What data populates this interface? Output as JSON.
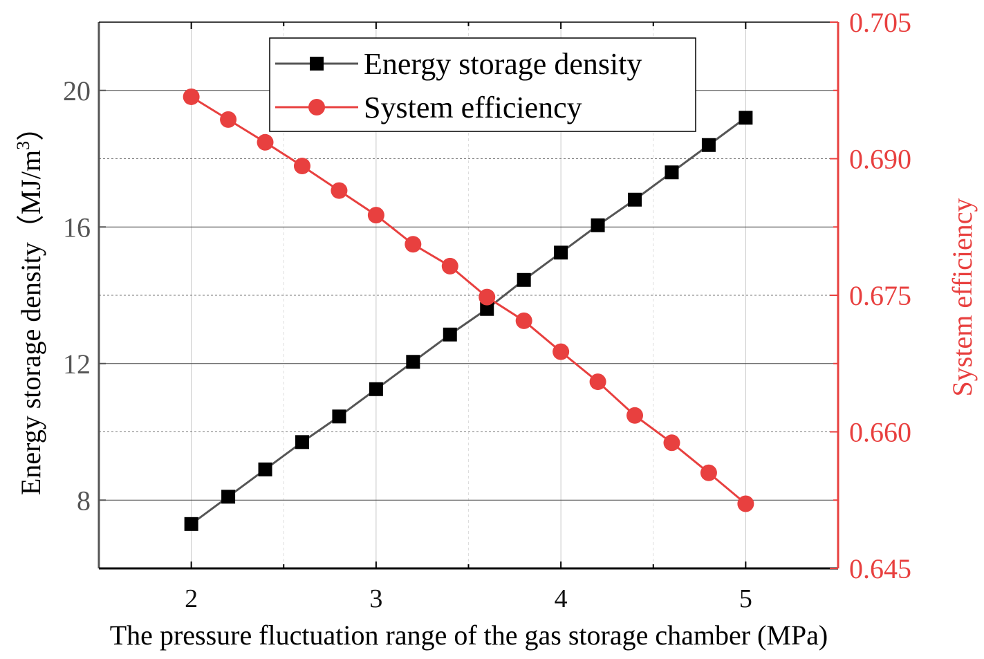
{
  "chart_data": {
    "type": "line",
    "x": [
      2.0,
      2.2,
      2.4,
      2.6,
      2.8,
      3.0,
      3.2,
      3.4,
      3.6,
      3.8,
      4.0,
      4.2,
      4.4,
      4.6,
      4.8,
      5.0
    ],
    "series": [
      {
        "name": "Energy storage density",
        "axis": "left",
        "marker": "square",
        "color": "#000000",
        "line_color": "#555555",
        "values": [
          7.3,
          8.1,
          8.9,
          9.7,
          10.45,
          11.25,
          12.05,
          12.85,
          13.6,
          14.45,
          15.25,
          16.05,
          16.8,
          17.6,
          18.4,
          19.2
        ]
      },
      {
        "name": "System efficiency",
        "axis": "right",
        "marker": "circle",
        "color": "#e8403f",
        "line_color": "#e8403f",
        "values": [
          0.6968,
          0.6943,
          0.6918,
          0.6892,
          0.6865,
          0.6838,
          0.6806,
          0.6782,
          0.6748,
          0.6722,
          0.6688,
          0.6655,
          0.6618,
          0.6588,
          0.6555,
          0.6521
        ]
      }
    ],
    "xlabel": "The pressure fluctuation range of the gas storage chamber (MPa)",
    "ylabel_left": "Energy storage density（MJ/m",
    "ylabel_left_superscript": "3",
    "ylabel_left_suffix": "）",
    "ylabel_right": "System efficiency",
    "xlim": [
      1.5,
      5.5
    ],
    "ylim_left": [
      6,
      22
    ],
    "ylim_right": [
      0.645,
      0.705
    ],
    "xticks": [
      "2",
      "3",
      "4",
      "5"
    ],
    "yticks_left": [
      "8",
      "12",
      "16",
      "20"
    ],
    "yticks_right": [
      "0.645",
      "0.660",
      "0.675",
      "0.690",
      "0.705"
    ],
    "grid": true,
    "legend_position": "top-center"
  }
}
